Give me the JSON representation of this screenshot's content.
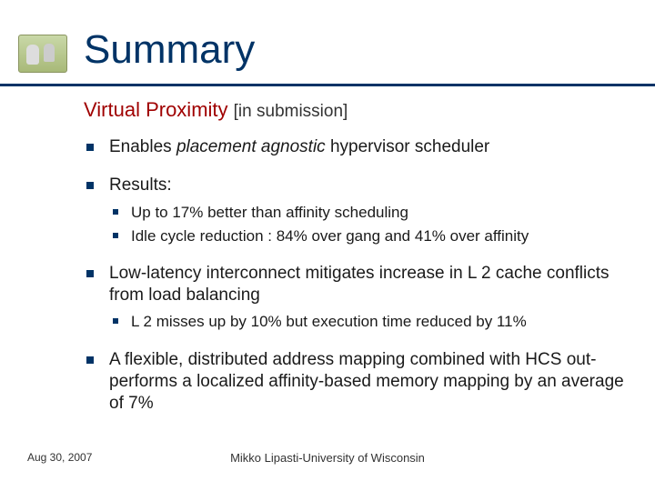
{
  "title": "Summary",
  "subtitle": {
    "main": "Virtual Proximity",
    "annotation": "[in submission]"
  },
  "bullets": {
    "b0": {
      "pre": "Enables ",
      "ital": "placement agnostic",
      "post": " hypervisor scheduler"
    },
    "b1": {
      "text": "Results:",
      "sub0": "Up to 17% better than affinity scheduling",
      "sub1": "Idle cycle reduction : 84% over gang and 41% over affinity"
    },
    "b2": {
      "text": "Low-latency interconnect mitigates increase in L 2 cache conflicts from load balancing",
      "sub0": "L 2 misses up by 10% but execution time reduced by 11%"
    },
    "b3": {
      "text": "A flexible, distributed address mapping combined with HCS out-performs a localized affinity-based memory mapping by an average of 7%"
    }
  },
  "footer": {
    "date": "Aug 30, 2007",
    "affil": "Mikko Lipasti-University of Wisconsin"
  },
  "colors": {
    "accent": "#003366",
    "subtitle": "#a00000",
    "text": "#1a1a1a",
    "bg": "#ffffff"
  },
  "fonts": {
    "title_pt": 44,
    "subtitle_pt": 22,
    "body_pt": 19,
    "sub_pt": 17,
    "footer_pt": 12
  }
}
